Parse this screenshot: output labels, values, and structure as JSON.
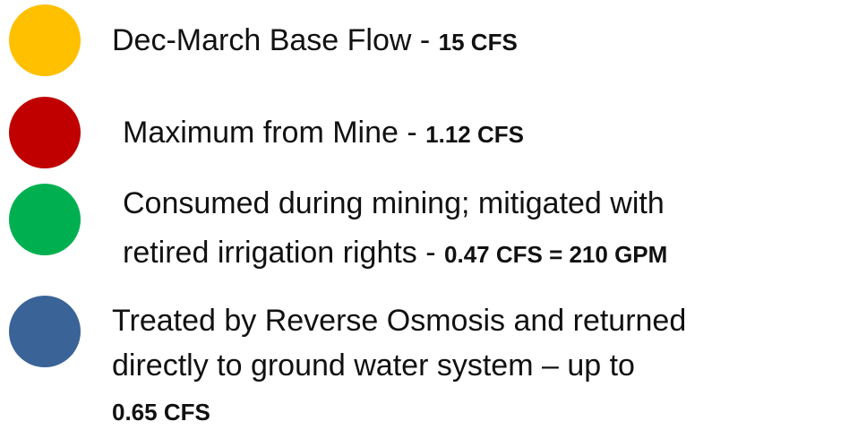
{
  "items": [
    {
      "color": "#FFC000",
      "lines": [
        "Dec-March Base Flow -"
      ],
      "value": "15 CFS"
    },
    {
      "color": "#C00000",
      "lines": [
        "Maximum from Mine -"
      ],
      "value": "1.12 CFS"
    },
    {
      "color": "#00B050",
      "lines": [
        "Consumed during mining; mitigated with",
        "retired irrigation rights -"
      ],
      "value": "0.47 CFS = 210 GPM"
    },
    {
      "color": "#3A6398",
      "lines": [
        "Treated by Reverse Osmosis and returned",
        "directly to ground water system – up to"
      ],
      "value": "0.65 CFS"
    }
  ]
}
